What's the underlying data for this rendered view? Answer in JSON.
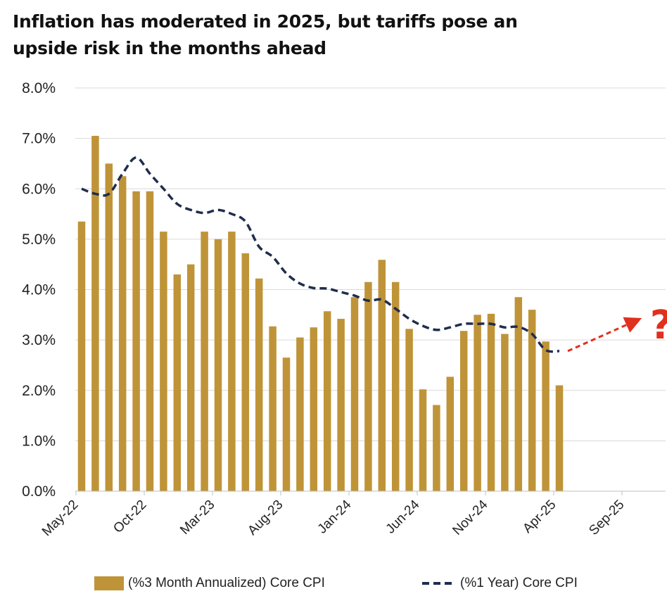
{
  "title": {
    "line1": "Inflation has moderated in 2025, but tariffs pose an",
    "line2": "upside risk in the months ahead"
  },
  "chart_data": {
    "type": "bar",
    "x_tick_labels": [
      "May-22",
      "Oct-22",
      "Mar-23",
      "Aug-23",
      "Jan-24",
      "Jun-24",
      "Nov-24",
      "Apr-25",
      "Sep-25"
    ],
    "y_tick_labels": [
      "0.0%",
      "1.0%",
      "2.0%",
      "3.0%",
      "4.0%",
      "5.0%",
      "6.0%",
      "7.0%",
      "8.0%"
    ],
    "ylim": [
      0,
      8
    ],
    "y_unit": "%",
    "grid": true,
    "legend_position": "bottom",
    "annotation": "?",
    "months": [
      "May-22",
      "Jun-22",
      "Jul-22",
      "Aug-22",
      "Sep-22",
      "Oct-22",
      "Nov-22",
      "Dec-22",
      "Jan-23",
      "Feb-23",
      "Mar-23",
      "Apr-23",
      "May-23",
      "Jun-23",
      "Jul-23",
      "Aug-23",
      "Sep-23",
      "Oct-23",
      "Nov-23",
      "Dec-23",
      "Jan-24",
      "Feb-24",
      "Mar-24",
      "Apr-24",
      "May-24",
      "Jun-24",
      "Jul-24",
      "Aug-24",
      "Sep-24",
      "Oct-24",
      "Nov-24",
      "Dec-24",
      "Jan-25",
      "Feb-25",
      "Mar-25",
      "Apr-25"
    ],
    "series": [
      {
        "name": "(%3 Month Annualized) Core CPI",
        "type": "bar",
        "color": "#bf9438",
        "values": [
          5.35,
          7.05,
          6.5,
          6.25,
          5.95,
          5.95,
          5.15,
          4.3,
          4.5,
          5.15,
          5.0,
          5.15,
          4.72,
          4.22,
          3.27,
          2.65,
          3.05,
          3.25,
          3.57,
          3.42,
          3.85,
          4.15,
          4.59,
          4.15,
          3.22,
          2.02,
          1.71,
          2.27,
          3.18,
          3.5,
          3.52,
          3.12,
          3.85,
          3.6,
          2.97,
          2.1
        ]
      },
      {
        "name": "(%1 Year) Core CPI",
        "type": "line",
        "style": "dashed",
        "color": "#1f2d4d",
        "values": [
          6.0,
          5.9,
          5.9,
          6.3,
          6.62,
          6.3,
          6.0,
          5.7,
          5.58,
          5.52,
          5.58,
          5.5,
          5.35,
          4.85,
          4.65,
          4.32,
          4.12,
          4.03,
          4.02,
          3.95,
          3.88,
          3.78,
          3.8,
          3.62,
          3.42,
          3.28,
          3.2,
          3.25,
          3.32,
          3.32,
          3.32,
          3.25,
          3.26,
          3.12,
          2.8,
          2.78
        ]
      }
    ],
    "projection": {
      "color": "#e0301e",
      "style": "dashed-arrow",
      "from": {
        "month": "Apr-25",
        "value": 2.78
      },
      "to": {
        "month": "Sep-25",
        "value": 3.3
      }
    }
  }
}
